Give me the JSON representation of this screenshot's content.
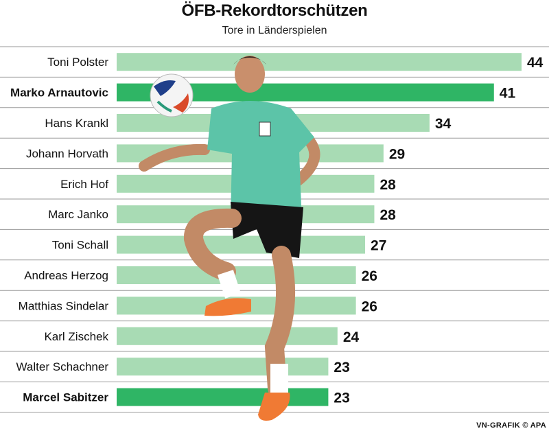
{
  "title": "ÖFB-Rekordtorschützen",
  "subtitle": "Tore in Länderspielen",
  "credit": "VN-GRAFIK © APA",
  "colors": {
    "bar": "#a8dbb4",
    "bar_highlight": "#2fb565",
    "separator": "#9a9a9a",
    "text": "#111111"
  },
  "chart_data": {
    "type": "bar",
    "orientation": "horizontal",
    "categories": [
      "Toni Polster",
      "Marko Arnautovic",
      "Hans Krankl",
      "Johann Horvath",
      "Erich Hof",
      "Marc Janko",
      "Toni Schall",
      "Andreas Herzog",
      "Matthias Sindelar",
      "Karl Zischek",
      "Walter Schachner",
      "Marcel Sabitzer"
    ],
    "values": [
      44,
      41,
      34,
      29,
      28,
      28,
      27,
      26,
      26,
      24,
      23,
      23
    ],
    "highlighted": [
      "Marko Arnautovic",
      "Marcel Sabitzer"
    ],
    "title": "ÖFB-Rekordtorschützen",
    "subtitle": "Tore in Länderspielen",
    "xlabel": "",
    "ylabel": "",
    "xlim": [
      0,
      44
    ],
    "grid": false,
    "data_labels": true
  }
}
